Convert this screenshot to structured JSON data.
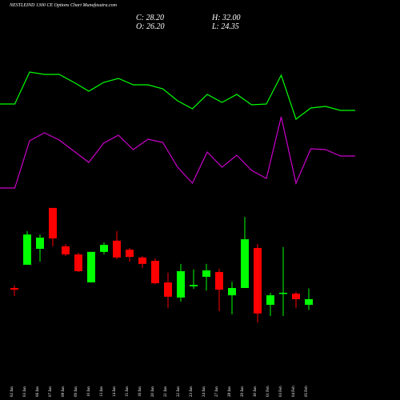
{
  "chart_data": [
    {
      "type": "candlestick",
      "title": "NESTLEIND 1300 CE Options Chart Munafasutra.com",
      "ohlc_labels": {
        "close": "C: 28.20",
        "high": "H: 32.00",
        "open": "O: 26.20",
        "low": "L: 24.35"
      },
      "x": [
        "02 Jan",
        "03 Jan",
        "06 Jan",
        "07 Jan",
        "08 Jan",
        "09 Jan",
        "10 Jan",
        "13 Jan",
        "14 Jan",
        "15 Jan",
        "16 Jan",
        "20 Jan",
        "21 Jan",
        "22 Jan",
        "23 Jan",
        "24 Jan",
        "27 Jan",
        "28 Jan",
        "29 Jan",
        "30 Jan",
        "01 Feb",
        "03 Feb",
        "04 Feb",
        "05 Feb"
      ],
      "open": [
        32.2,
        40.5,
        46.2,
        60.8,
        47.1,
        44.2,
        34.2,
        45.1,
        49.1,
        45.9,
        43.1,
        41.9,
        34.2,
        28.8,
        32.8,
        36.2,
        37.9,
        29.6,
        32.2,
        46.5,
        26.2,
        30.2,
        30.2,
        26.2
      ],
      "high": [
        33.1,
        52.5,
        51.3,
        60.8,
        47.9,
        44.8,
        45.1,
        48.5,
        52.5,
        46.5,
        43.6,
        42.8,
        37.6,
        40.8,
        38.8,
        40.8,
        39.1,
        34.5,
        57.6,
        47.9,
        30.5,
        46.8,
        30.8,
        32.0
      ],
      "low": [
        29.3,
        40.5,
        41.6,
        47.1,
        43.6,
        37.9,
        34.2,
        44.2,
        42.5,
        41.6,
        39.3,
        33.6,
        25.1,
        27.3,
        31.9,
        31.3,
        23.9,
        22.8,
        32.2,
        19.9,
        22.2,
        22.2,
        25.1,
        24.35
      ],
      "close": [
        31.6,
        51.3,
        50.2,
        49.9,
        44.2,
        38.2,
        45.1,
        47.6,
        43.1,
        43.3,
        40.8,
        33.9,
        29.1,
        38.2,
        33.3,
        38.5,
        31.6,
        32.2,
        49.6,
        23.1,
        29.6,
        30.5,
        28.2,
        28.2
      ],
      "up_color": "#00ff00",
      "down_color": "#ff0000",
      "ylim": [
        15,
        64
      ]
    },
    {
      "type": "line",
      "series": [
        {
          "color": "#00ff00",
          "values": [
            120,
            120,
            160,
            157,
            157,
            147,
            136,
            147,
            152,
            144,
            144,
            139,
            124,
            114,
            132,
            122,
            132,
            119,
            120,
            156,
            101,
            115,
            117,
            112,
            112
          ]
        },
        {
          "color": "#cc00cc",
          "values": [
            15,
            15,
            74,
            84,
            75,
            61,
            47,
            71,
            81,
            63,
            76,
            72,
            41,
            21,
            60,
            41,
            56,
            37,
            27,
            104,
            21,
            64,
            63,
            55,
            55
          ]
        }
      ],
      "ylim": [
        0,
        250
      ]
    }
  ]
}
